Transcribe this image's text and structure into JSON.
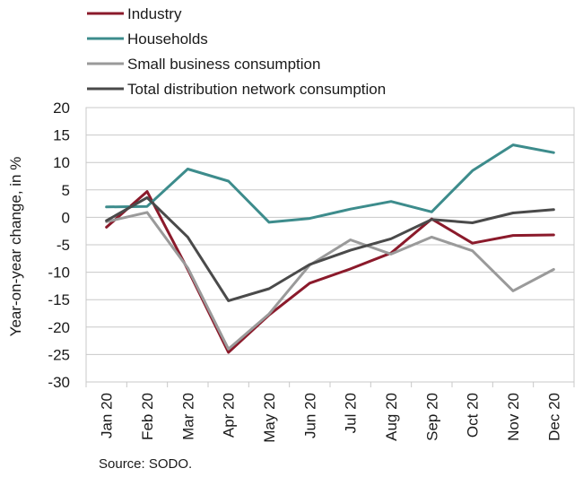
{
  "chart_data": {
    "type": "line",
    "categories": [
      "Jan 20",
      "Feb 20",
      "Mar 20",
      "Apr 20",
      "May 20",
      "Jun 20",
      "Jul 20",
      "Aug 20",
      "Sep 20",
      "Oct 20",
      "Nov 20",
      "Dec 20"
    ],
    "series": [
      {
        "name": "Industry",
        "color": "#8b1a2b",
        "values": [
          -1.8,
          4.7,
          -9.5,
          -24.6,
          -17.8,
          -12.0,
          -9.4,
          -6.5,
          -0.3,
          -4.7,
          -3.3,
          -3.2
        ]
      },
      {
        "name": "Households",
        "color": "#3d8c8c",
        "values": [
          1.9,
          2.0,
          8.8,
          6.6,
          -0.9,
          -0.2,
          1.5,
          2.9,
          1.0,
          8.5,
          13.2,
          11.8
        ]
      },
      {
        "name": "Small business consumption",
        "color": "#9a9a9a",
        "values": [
          -0.8,
          0.9,
          -9.2,
          -24.0,
          -17.6,
          -8.7,
          -4.1,
          -6.7,
          -3.6,
          -6.1,
          -13.4,
          -9.5
        ]
      },
      {
        "name": "Total distribution network consumption",
        "color": "#4a4a4a",
        "values": [
          -0.6,
          3.6,
          -3.6,
          -15.2,
          -13.0,
          -8.6,
          -6.0,
          -3.9,
          -0.4,
          -1.0,
          0.8,
          1.4
        ]
      }
    ],
    "ylabel": "Year-on-year change, in %",
    "ylim": [
      -30,
      20
    ],
    "yticks": [
      -30,
      -25,
      -20,
      -15,
      -10,
      -5,
      0,
      5,
      10,
      15,
      20
    ],
    "grid": true,
    "legend": "top-left",
    "source": "Source: SODO."
  }
}
